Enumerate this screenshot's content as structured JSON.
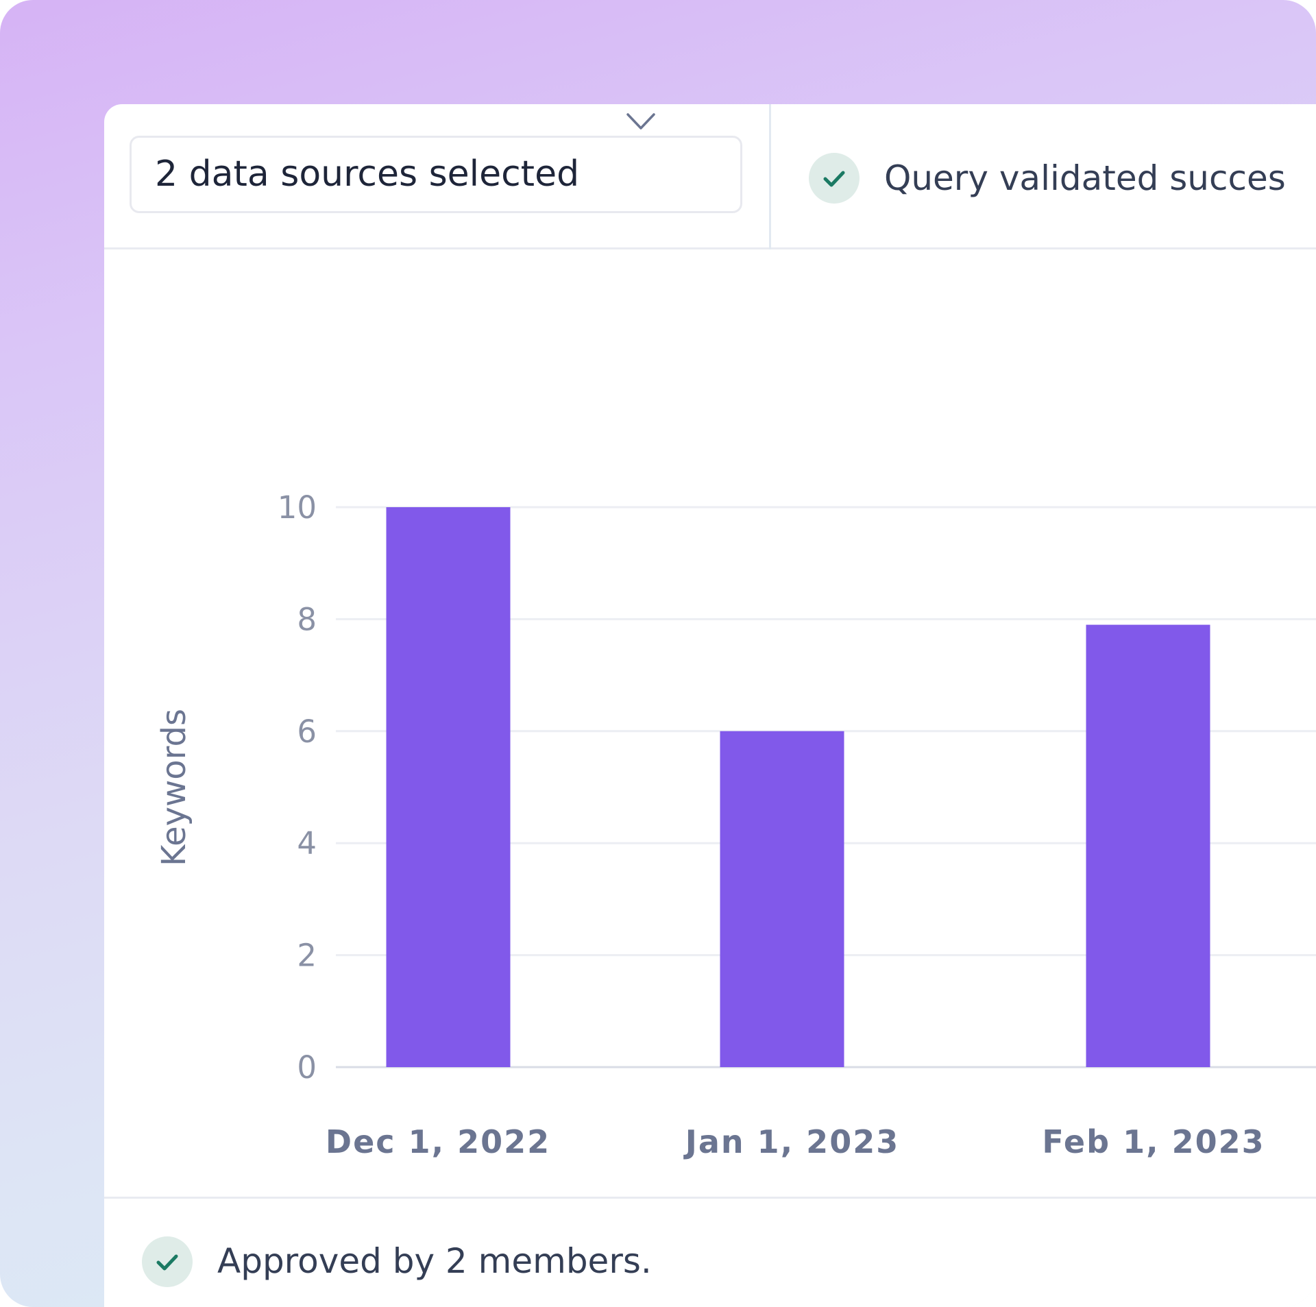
{
  "toolbar": {
    "source_select_label": "2 data sources selected",
    "status_text": "Query validated succes"
  },
  "footer": {
    "approval_text": "Approved by 2 members."
  },
  "icons": {
    "dropdown": "chevron-down-icon",
    "status": "check-icon",
    "approval": "check-icon"
  },
  "colors": {
    "bar": "#8159ea",
    "check": "#1b7a63",
    "check_bg": "#dfece8",
    "axis_text": "#8a91a5",
    "category_text": "#6b7591"
  },
  "chart_data": {
    "type": "bar",
    "categories": [
      "Dec 1, 2022",
      "Jan 1, 2023",
      "Feb 1, 2023"
    ],
    "values": [
      10,
      6,
      7.9
    ],
    "title": "",
    "xlabel": "",
    "ylabel": "Keywords",
    "ylim": [
      0,
      10
    ],
    "yticks": [
      0,
      2,
      4,
      6,
      8,
      10
    ],
    "grid": true
  }
}
